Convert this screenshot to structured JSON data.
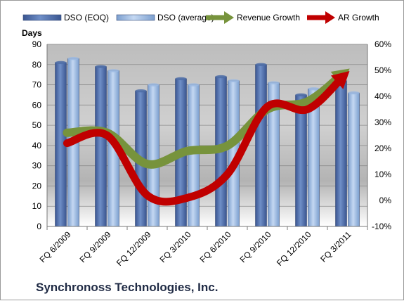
{
  "footer_title": "Synchronoss Technologies, Inc.",
  "chart_data": {
    "type": "bar",
    "categories": [
      "FQ 6/2009",
      "FQ 9/2009",
      "FQ 12/2009",
      "FQ 3/2010",
      "FQ 6/2010",
      "FQ 9/2010",
      "FQ 12/2010",
      "FQ 3/2011"
    ],
    "ylabel": "Days",
    "ylim": [
      0,
      90
    ],
    "yticks": [
      "0",
      "10",
      "20",
      "30",
      "40",
      "50",
      "60",
      "70",
      "80",
      "90"
    ],
    "y2lim": [
      -10,
      60
    ],
    "y2ticks": [
      "-10%",
      "0%",
      "10%",
      "20%",
      "30%",
      "40%",
      "50%",
      "60%"
    ],
    "grid": true,
    "legend_position": "top",
    "series": [
      {
        "name": "DSO (EOQ)",
        "kind": "bar",
        "axis": "left",
        "color": "#4f6ea8",
        "values": [
          81,
          79,
          67,
          73,
          74,
          80,
          65,
          72
        ]
      },
      {
        "name": "DSO (average)",
        "kind": "bar",
        "axis": "left",
        "color": "#9bb8e0",
        "values": [
          83,
          77,
          70,
          70,
          72,
          71,
          68,
          66
        ]
      },
      {
        "name": "Revenue Growth",
        "kind": "line",
        "axis": "right",
        "color": "#77933c",
        "values": [
          26,
          26,
          14,
          19,
          21,
          35,
          38,
          50
        ]
      },
      {
        "name": "AR Growth",
        "kind": "line",
        "axis": "right",
        "color": "#c00000",
        "values": [
          22,
          25,
          2,
          1,
          10,
          36,
          35,
          49
        ]
      }
    ]
  }
}
